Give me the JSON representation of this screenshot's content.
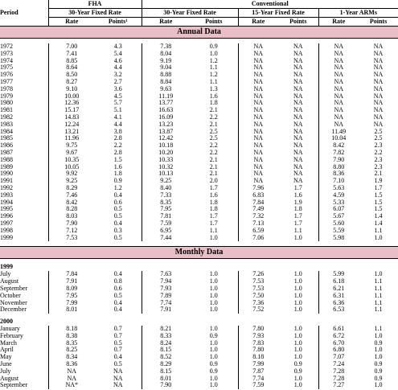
{
  "header": {
    "period": "Period",
    "fha": "FHA",
    "conventional": "Conventional",
    "fha_30": "30-Year Fixed Rate",
    "conv_30": "30-Year Fixed Rate",
    "conv_15": "15-Year Fixed Rate",
    "arm_1": "1-Year ARMs",
    "col_rate": "Rate",
    "col_points_fha": "Points¹",
    "col_points": "Points"
  },
  "annual_title": "Annual Data",
  "monthly_title": "Monthly Data",
  "annual_rows": [
    [
      "1972",
      "7.00",
      "4.3",
      "7.38",
      "0.9",
      "NA",
      "NA",
      "NA",
      "NA"
    ],
    [
      "1973",
      "7.41",
      "5.4",
      "8.04",
      "1.0",
      "NA",
      "NA",
      "NA",
      "NA"
    ],
    [
      "1974",
      "8.85",
      "4.6",
      "9.19",
      "1.2",
      "NA",
      "NA",
      "NA",
      "NA"
    ],
    [
      "1975",
      "8.64",
      "4.4",
      "9.04",
      "1.1",
      "NA",
      "NA",
      "NA",
      "NA"
    ],
    [
      "1976",
      "8.50",
      "3.2",
      "8.88",
      "1.2",
      "NA",
      "NA",
      "NA",
      "NA"
    ],
    [
      "1977",
      "8.27",
      "2.7",
      "8.84",
      "1.1",
      "NA",
      "NA",
      "NA",
      "NA"
    ],
    [
      "1978",
      "9.10",
      "3.6",
      "9.63",
      "1.3",
      "NA",
      "NA",
      "NA",
      "NA"
    ],
    [
      "1979",
      "10.00",
      "4.5",
      "11.19",
      "1.6",
      "NA",
      "NA",
      "NA",
      "NA"
    ],
    [
      "1980",
      "12.36",
      "5.7",
      "13.77",
      "1.8",
      "NA",
      "NA",
      "NA",
      "NA"
    ],
    [
      "1981",
      "15.17",
      "5.1",
      "16.63",
      "2.1",
      "NA",
      "NA",
      "NA",
      "NA"
    ],
    [
      "1982",
      "14.83",
      "4.1",
      "16.09",
      "2.2",
      "NA",
      "NA",
      "NA",
      "NA"
    ],
    [
      "1983",
      "12.24",
      "4.4",
      "13.23",
      "2.1",
      "NA",
      "NA",
      "NA",
      "NA"
    ],
    [
      "1984",
      "13.21",
      "3.8",
      "13.87",
      "2.5",
      "NA",
      "NA",
      "11.49",
      "2.5"
    ],
    [
      "1985",
      "11.96",
      "2.8",
      "12.42",
      "2.5",
      "NA",
      "NA",
      "10.04",
      "2.5"
    ],
    [
      "1986",
      "9.75",
      "2.2",
      "10.18",
      "2.2",
      "NA",
      "NA",
      "8.42",
      "2.3"
    ],
    [
      "1987",
      "9.67",
      "2.8",
      "10.20",
      "2.2",
      "NA",
      "NA",
      "7.82",
      "2.2"
    ],
    [
      "1988",
      "10.35",
      "1.5",
      "10.33",
      "2.1",
      "NA",
      "NA",
      "7.90",
      "2.3"
    ],
    [
      "1989",
      "10.05",
      "1.6",
      "10.32",
      "2.1",
      "NA",
      "NA",
      "8.80",
      "2.3"
    ],
    [
      "1990",
      "9.92",
      "1.8",
      "10.13",
      "2.1",
      "NA",
      "NA",
      "8.36",
      "2.1"
    ],
    [
      "1991",
      "9.25",
      "0.9",
      "9.25",
      "2.0",
      "NA",
      "NA",
      "7.10",
      "1.9"
    ],
    [
      "1992",
      "8.29",
      "1.2",
      "8.40",
      "1.7",
      "7.96",
      "1.7",
      "5.63",
      "1.7"
    ],
    [
      "1993",
      "7.46",
      "0.4",
      "7.33",
      "1.6",
      "6.83",
      "1.6",
      "4.59",
      "1.5"
    ],
    [
      "1994",
      "8.42",
      "0.6",
      "8.35",
      "1.8",
      "7.84",
      "1.9",
      "5.33",
      "1.5"
    ],
    [
      "1995",
      "8.28",
      "0.5",
      "7.95",
      "1.8",
      "7.49",
      "1.8",
      "6.07",
      "1.5"
    ],
    [
      "1996",
      "8.03",
      "0.5",
      "7.81",
      "1.7",
      "7.32",
      "1.7",
      "5.67",
      "1.4"
    ],
    [
      "1997",
      "7.90",
      "0.4",
      "7.59",
      "1.7",
      "7.13",
      "1.7",
      "5.60",
      "1.4"
    ],
    [
      "1998",
      "7.12",
      "0.3",
      "6.95",
      "1.1",
      "6.59",
      "1.1",
      "5.59",
      "1.1"
    ],
    [
      "1999",
      "7.53",
      "0.5",
      "7.44",
      "1.0",
      "7.06",
      "1.0",
      "5.98",
      "1.0"
    ]
  ],
  "monthly_groups": [
    {
      "year": "1999",
      "rows": [
        [
          "July",
          "7.84",
          "0.4",
          "7.63",
          "1.0",
          "7.26",
          "1.0",
          "5.99",
          "1.0"
        ],
        [
          "August",
          "7.91",
          "0.8",
          "7.94",
          "1.0",
          "7.53",
          "1.0",
          "6.18",
          "1.1"
        ],
        [
          "September",
          "8.09",
          "0.6",
          "7.93",
          "1.0",
          "7.53",
          "1.0",
          "6.21",
          "1.1"
        ],
        [
          "October",
          "7.95",
          "0.5",
          "7.89",
          "1.0",
          "7.50",
          "1.0",
          "6.31",
          "1.1"
        ],
        [
          "November",
          "7.99",
          "0.4",
          "7.74",
          "1.0",
          "7.36",
          "1.0",
          "6.36",
          "1.1"
        ],
        [
          "December",
          "8.01",
          "0.4",
          "7.91",
          "1.0",
          "7.52",
          "1.0",
          "6.53",
          "1.1"
        ]
      ]
    },
    {
      "year": "2000",
      "rows": [
        [
          "January",
          "8.18",
          "0.7",
          "8.21",
          "1.0",
          "7.80",
          "1.0",
          "6.61",
          "1.1"
        ],
        [
          "February",
          "8.38",
          "0.7",
          "8.33",
          "0.9",
          "7.93",
          "1.0",
          "6.72",
          "1.0"
        ],
        [
          "March",
          "8.35",
          "0.5",
          "8.24",
          "1.0",
          "7.83",
          "1.0",
          "6.70",
          "0.9"
        ],
        [
          "April",
          "8.25",
          "0.7",
          "8.15",
          "1.0",
          "7.80",
          "1.0",
          "6.80",
          "1.0"
        ],
        [
          "May",
          "8.34",
          "0.4",
          "8.52",
          "1.0",
          "8.18",
          "1.0",
          "7.07",
          "1.0"
        ],
        [
          "June",
          "8.36",
          "0.5",
          "8.29",
          "0.9",
          "7.99",
          "0.9",
          "7.24",
          "0.9"
        ],
        [
          "July",
          "NA",
          "NA",
          "8.15",
          "0.9",
          "7.87",
          "0.9",
          "7.28",
          "0.9"
        ],
        [
          "August",
          "NA",
          "NA",
          "8.01",
          "1.0",
          "7.74",
          "1.0",
          "7.28",
          "0.9"
        ],
        [
          "September",
          "NA*",
          "NA",
          "7.90",
          "1.0",
          "7.59",
          "1.0",
          "7.27",
          "1.0"
        ]
      ]
    }
  ],
  "colors": {
    "band": "#e8bfc7"
  }
}
